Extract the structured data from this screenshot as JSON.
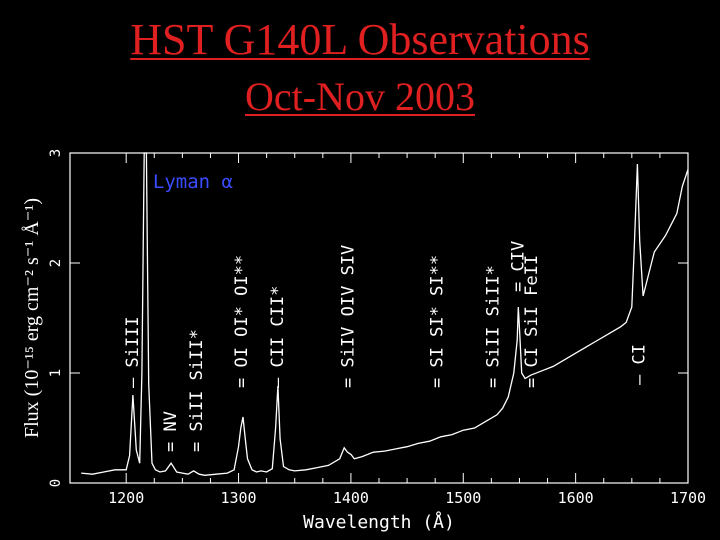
{
  "slide": {
    "title_line1": "HST G140L Observations",
    "title_line2": "Oct-Nov 2003"
  },
  "colors": {
    "background": "#000000",
    "title": "#e02020",
    "plot_frame": "#ffffff",
    "spectrum": "#ffffff",
    "lyman_label": "#3a4cff"
  },
  "chart_data": {
    "type": "line",
    "title": "",
    "xlabel": "Wavelength (Å)",
    "ylabel": "Flux (10⁻¹⁵ erg cm⁻² s⁻¹ Å⁻¹)",
    "xlim": [
      1150,
      1700
    ],
    "ylim": [
      0,
      3
    ],
    "xticks": [
      1200,
      1300,
      1400,
      1500,
      1600,
      1700
    ],
    "yticks": [
      0,
      1,
      2,
      3
    ],
    "xtick_labels": [
      "1200",
      "1300",
      "1400",
      "1500",
      "1600",
      "1700"
    ],
    "ytick_labels": [
      "0",
      "1",
      "2",
      "3"
    ],
    "grid": false,
    "annotation_lyman": "Lyman α",
    "line_labels": [
      {
        "text": "SiIII",
        "x": 1206
      },
      {
        "text": "NV",
        "x": 1240
      },
      {
        "text": "SiII SiII*",
        "x": 1263
      },
      {
        "text": "OI OI* OI**",
        "x": 1303
      },
      {
        "text": "CII CII*",
        "x": 1335
      },
      {
        "text": "SiIV OIV SIV",
        "x": 1398
      },
      {
        "text": "SI SI* SI**",
        "x": 1477
      },
      {
        "text": "SiII SiII*",
        "x": 1527
      },
      {
        "text": "CIV",
        "x": 1549
      },
      {
        "text": "CI SiI FeII",
        "x": 1561
      },
      {
        "text": "CI",
        "x": 1657
      }
    ],
    "series": [
      {
        "x": [
          1160,
          1170,
          1180,
          1190,
          1200,
          1203,
          1206,
          1209,
          1212,
          1214,
          1216,
          1218,
          1220,
          1223,
          1226,
          1230,
          1235,
          1240,
          1245,
          1250,
          1255,
          1260,
          1265,
          1270,
          1280,
          1290,
          1296,
          1300,
          1302,
          1304,
          1306,
          1308,
          1312,
          1316,
          1320,
          1325,
          1330,
          1333,
          1335,
          1337,
          1340,
          1345,
          1350,
          1360,
          1370,
          1380,
          1390,
          1394,
          1397,
          1400,
          1403,
          1410,
          1420,
          1430,
          1440,
          1450,
          1460,
          1470,
          1480,
          1490,
          1500,
          1510,
          1520,
          1530,
          1535,
          1540,
          1545,
          1548,
          1549,
          1550,
          1552,
          1555,
          1560,
          1570,
          1580,
          1590,
          1600,
          1610,
          1620,
          1630,
          1640,
          1645,
          1650,
          1652,
          1655,
          1657,
          1660,
          1665,
          1670,
          1680,
          1690,
          1695,
          1700
        ],
        "y": [
          0.09,
          0.08,
          0.1,
          0.12,
          0.12,
          0.25,
          0.8,
          0.3,
          0.18,
          1.0,
          3.0,
          3.0,
          0.9,
          0.18,
          0.12,
          0.1,
          0.11,
          0.18,
          0.1,
          0.09,
          0.08,
          0.11,
          0.08,
          0.07,
          0.08,
          0.09,
          0.12,
          0.33,
          0.5,
          0.6,
          0.4,
          0.22,
          0.12,
          0.1,
          0.11,
          0.1,
          0.13,
          0.5,
          0.88,
          0.4,
          0.15,
          0.12,
          0.11,
          0.12,
          0.14,
          0.16,
          0.22,
          0.32,
          0.28,
          0.26,
          0.22,
          0.24,
          0.28,
          0.29,
          0.31,
          0.33,
          0.36,
          0.38,
          0.42,
          0.44,
          0.48,
          0.5,
          0.56,
          0.62,
          0.68,
          0.78,
          1.0,
          1.3,
          1.6,
          1.4,
          1.0,
          0.95,
          0.98,
          1.02,
          1.06,
          1.12,
          1.18,
          1.24,
          1.3,
          1.36,
          1.42,
          1.46,
          1.6,
          2.1,
          2.9,
          2.2,
          1.7,
          1.9,
          2.1,
          2.25,
          2.45,
          2.7,
          2.85
        ]
      }
    ]
  }
}
